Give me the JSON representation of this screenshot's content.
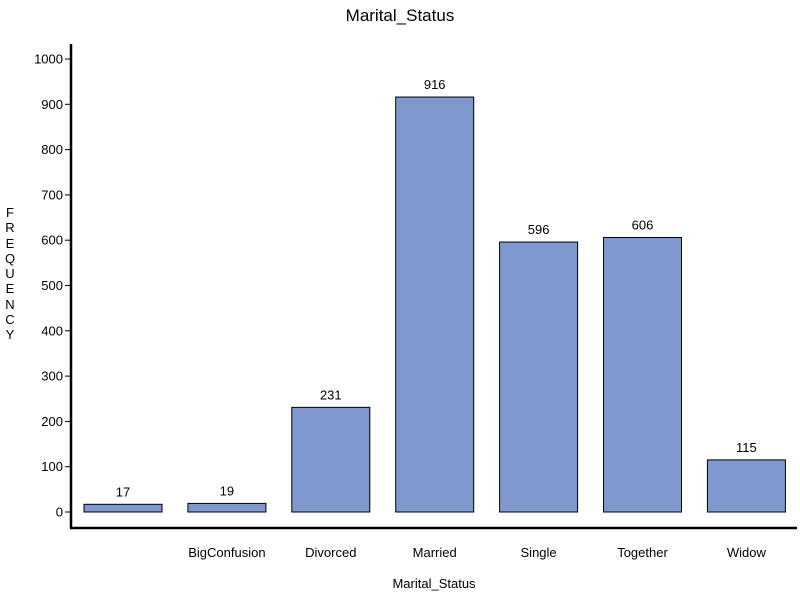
{
  "chart_data": {
    "type": "bar",
    "title": "Marital_Status",
    "xlabel": "Marital_Status",
    "ylabel": "FREQUENCY",
    "categories": [
      "",
      "BigConfusion",
      "Divorced",
      "Married",
      "Single",
      "Together",
      "Widow"
    ],
    "values": [
      17,
      19,
      231,
      916,
      596,
      606,
      115
    ],
    "ylim": [
      0,
      1000
    ],
    "yticks": [
      0,
      100,
      200,
      300,
      400,
      500,
      600,
      700,
      800,
      900,
      1000
    ],
    "grid": false,
    "bar_color": "#7f99cf",
    "bar_edge_color": "#000000"
  }
}
